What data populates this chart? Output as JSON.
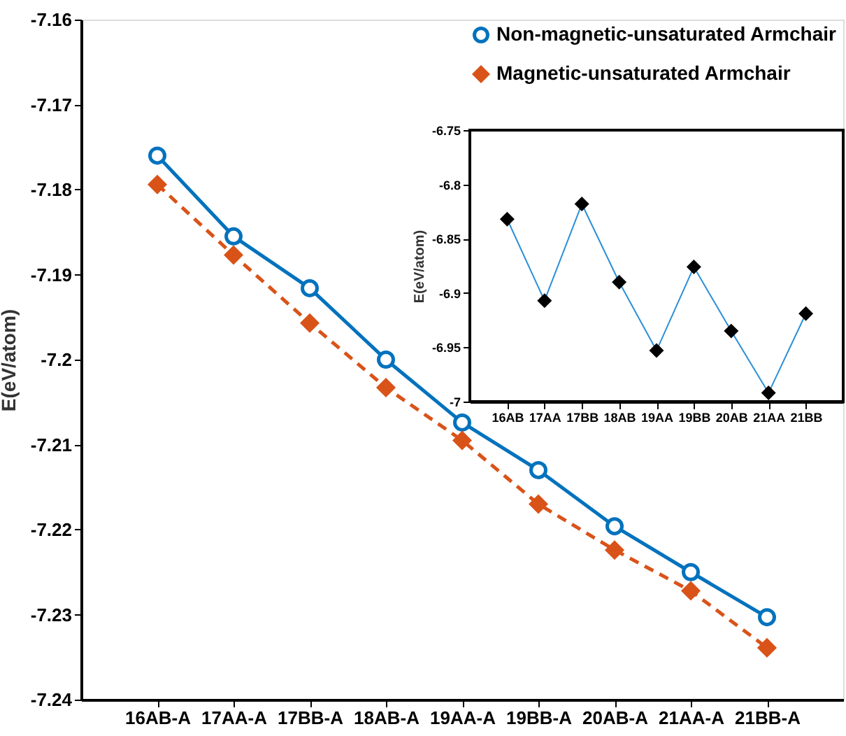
{
  "chart_data": [
    {
      "type": "line",
      "ylabel": "E(eV/atom)",
      "categories": [
        "16AB-A",
        "17AA-A",
        "17BB-A",
        "18AB-A",
        "19AA-A",
        "19BB-A",
        "20AB-A",
        "21AA-A",
        "21BB-A"
      ],
      "series": [
        {
          "name": "Non-magnetic-unsaturated Armchair",
          "color": "#0072bd",
          "marker": "circle",
          "line_style": "solid",
          "values": [
            -7.176,
            -7.1855,
            -7.1916,
            -7.2,
            -7.2074,
            -7.213,
            -7.2196,
            -7.225,
            -7.2303
          ]
        },
        {
          "name": "Magnetic-unsaturated Armchair",
          "color": "#d95319",
          "marker": "diamond",
          "line_style": "dashed",
          "values": [
            -7.1794,
            -7.1877,
            -7.1957,
            -7.2033,
            -7.2095,
            -7.217,
            -7.2224,
            -7.2272,
            -7.2339
          ]
        }
      ],
      "ylim": [
        -7.24,
        -7.16
      ],
      "yticks": [
        -7.24,
        -7.23,
        -7.22,
        -7.21,
        -7.2,
        -7.19,
        -7.18,
        -7.17,
        -7.16
      ],
      "legend": "top right"
    },
    {
      "type": "line",
      "ylabel": "E(eV/atom)",
      "categories": [
        "16AB",
        "17AA",
        "17BB",
        "18AB",
        "19AA",
        "19BB",
        "20AB",
        "21AA",
        "21BB"
      ],
      "series": [
        {
          "color": "#2b8fd8",
          "marker": "diamond",
          "values": [
            -6.832,
            -6.907,
            -6.818,
            -6.89,
            -6.953,
            -6.876,
            -6.935,
            -6.992,
            -6.919
          ]
        }
      ],
      "ylim": [
        -7,
        -6.75
      ],
      "yticks": [
        -7,
        -6.95,
        -6.9,
        -6.85,
        -6.8,
        -6.75
      ]
    }
  ]
}
